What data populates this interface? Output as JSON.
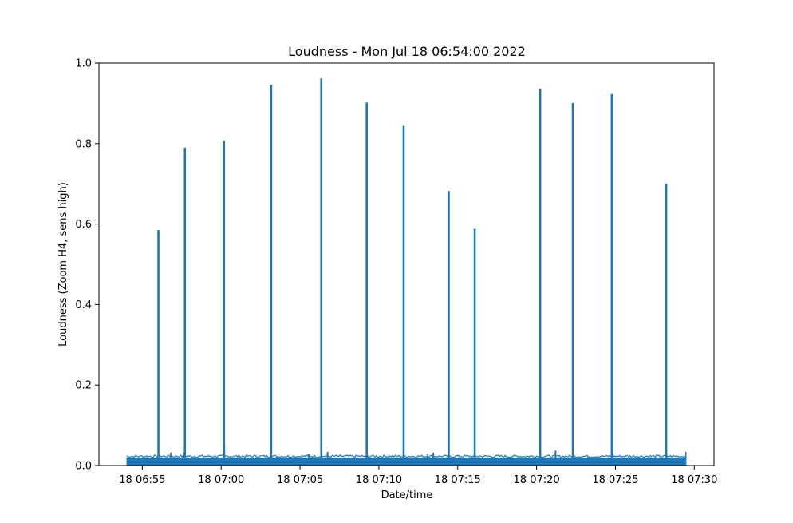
{
  "chart_data": {
    "type": "line",
    "title": "Loudness - Mon Jul 18 06:54:00 2022",
    "xlabel": "Date/time",
    "ylabel": "Loudness (Zoom H4, sens high)",
    "xlim_minutes": [
      -1.75,
      37.25
    ],
    "x_reference": "2022-07-18 06:54:00",
    "ylim": [
      0.0,
      1.0
    ],
    "x_ticks": [
      {
        "minute": 1,
        "label": "18 06:55"
      },
      {
        "minute": 6,
        "label": "18 07:00"
      },
      {
        "minute": 11,
        "label": "18 07:05"
      },
      {
        "minute": 16,
        "label": "18 07:10"
      },
      {
        "minute": 21,
        "label": "18 07:15"
      },
      {
        "minute": 26,
        "label": "18 07:20"
      },
      {
        "minute": 31,
        "label": "18 07:25"
      },
      {
        "minute": 36,
        "label": "18 07:30"
      }
    ],
    "y_ticks": [
      {
        "value": 0.0,
        "label": "0.0"
      },
      {
        "value": 0.2,
        "label": "0.2"
      },
      {
        "value": 0.4,
        "label": "0.4"
      },
      {
        "value": 0.6,
        "label": "0.6"
      },
      {
        "value": 0.8,
        "label": "0.8"
      },
      {
        "value": 1.0,
        "label": "1.0"
      }
    ],
    "grid": false,
    "color": "#1f77b4",
    "baseline": {
      "start_minute": 0.0,
      "end_minute": 35.5,
      "level": 0.02,
      "max_level": 0.026
    },
    "spikes": [
      {
        "time": "06:56:01",
        "minute": 2.02,
        "value": 0.585
      },
      {
        "time": "06:57:42",
        "minute": 3.7,
        "value": 0.79
      },
      {
        "time": "07:00:11",
        "minute": 6.18,
        "value": 0.808
      },
      {
        "time": "07:03:10",
        "minute": 9.17,
        "value": 0.946
      },
      {
        "time": "07:06:21",
        "minute": 12.35,
        "value": 0.962
      },
      {
        "time": "07:09:14",
        "minute": 15.23,
        "value": 0.902
      },
      {
        "time": "07:11:34",
        "minute": 17.57,
        "value": 0.844
      },
      {
        "time": "07:14:26",
        "minute": 20.43,
        "value": 0.682
      },
      {
        "time": "07:16:05",
        "minute": 22.08,
        "value": 0.588
      },
      {
        "time": "07:20:14",
        "minute": 26.23,
        "value": 0.936
      },
      {
        "time": "07:22:18",
        "minute": 28.3,
        "value": 0.901
      },
      {
        "time": "07:24:46",
        "minute": 30.77,
        "value": 0.923
      },
      {
        "time": "07:28:13",
        "minute": 34.22,
        "value": 0.7
      }
    ],
    "minor_bumps": [
      {
        "minute": 2.8,
        "value": 0.032
      },
      {
        "minute": 3.65,
        "value": 0.033
      },
      {
        "minute": 6.2,
        "value": 0.05
      },
      {
        "minute": 11.55,
        "value": 0.028
      },
      {
        "minute": 12.75,
        "value": 0.034
      },
      {
        "minute": 19.1,
        "value": 0.03
      },
      {
        "minute": 19.45,
        "value": 0.032
      },
      {
        "minute": 27.2,
        "value": 0.037
      },
      {
        "minute": 35.45,
        "value": 0.034
      }
    ]
  }
}
